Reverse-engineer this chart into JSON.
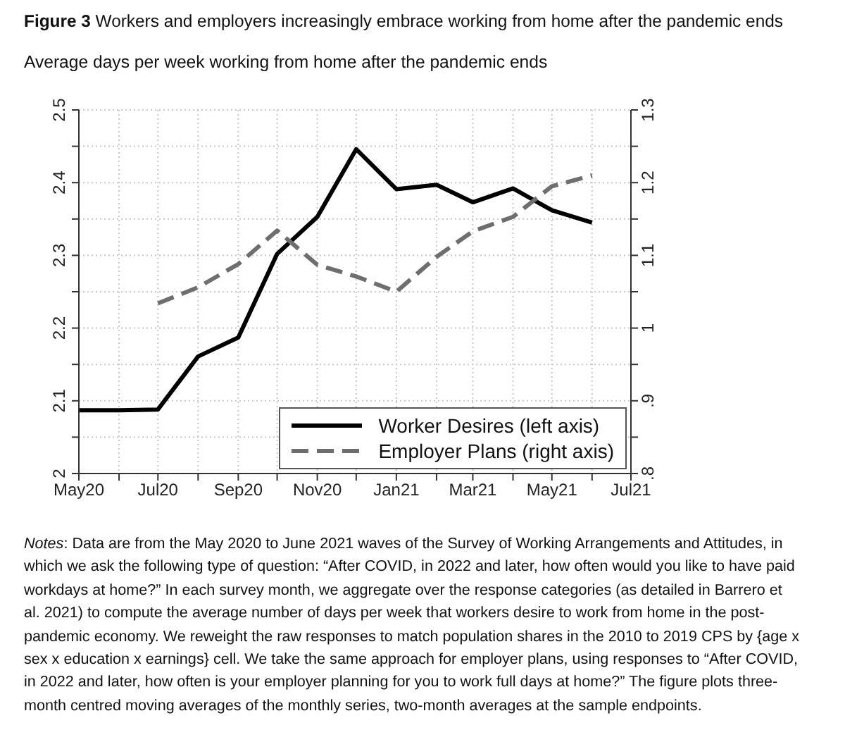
{
  "chart_data": {
    "type": "line",
    "title": "Figure 3 Workers and employers increasingly embrace working from home after the pandemic ends",
    "subtitle": "Average days per week working from home after the pandemic ends",
    "annotations": [
      "Notes: Data are from the May 2020 to June 2021 waves of the Survey of Working Arrangements and Attitudes, in which we ask the following type of question: “After COVID, in 2022 and later, how often would you like to have paid workdays at home?” In each survey month, we aggregate over the response categories (as detailed in Barrero et al. 2021) to compute the average number of days per week that workers desire to work from home in the post-pandemic economy. We reweight the raw responses to match population shares in the 2010 to 2019 CPS by {age x sex x education x earnings} cell. We take the same approach for employer plans, using responses to “After COVID, in 2022 and later, how often is your employer planning for you to work full days at home?” The figure plots three-month centred moving averages of the monthly series, two-month averages at the sample endpoints."
    ],
    "x": [
      "2020-05",
      "2020-06",
      "2020-07",
      "2020-08",
      "2020-09",
      "2020-10",
      "2020-11",
      "2020-12",
      "2021-01",
      "2021-02",
      "2021-03",
      "2021-04",
      "2021-05",
      "2021-06"
    ],
    "series": [
      {
        "name": "Worker Desires (left axis)",
        "color": "#000000",
        "line_style": "solid",
        "values": [
          2.087,
          2.087,
          2.088,
          2.161,
          2.187,
          2.302,
          2.353,
          2.446,
          2.391,
          2.397,
          2.373,
          2.392,
          2.362,
          2.345
        ]
      },
      {
        "name": "Employer Plans (right axis)",
        "color": "#6e6e6e",
        "line_style": "dashed",
        "axis": "y2",
        "values": [
          null,
          null,
          1.034,
          1.056,
          1.088,
          1.134,
          1.087,
          1.071,
          1.05,
          1.098,
          1.133,
          1.153,
          1.195,
          1.21
        ]
      }
    ],
    "xlim": [
      "2020-05",
      "2021-07"
    ],
    "xticks": [
      {
        "value": "2020-05",
        "label": "May20"
      },
      {
        "value": "2020-06",
        "label": null
      },
      {
        "value": "2020-07",
        "label": "Jul20"
      },
      {
        "value": "2020-08",
        "label": null
      },
      {
        "value": "2020-09",
        "label": "Sep20"
      },
      {
        "value": "2020-10",
        "label": null
      },
      {
        "value": "2020-11",
        "label": "Nov20"
      },
      {
        "value": "2020-12",
        "label": null
      },
      {
        "value": "2021-01",
        "label": "Jan21"
      },
      {
        "value": "2021-02",
        "label": null
      },
      {
        "value": "2021-03",
        "label": "Mar21"
      },
      {
        "value": "2021-04",
        "label": null
      },
      {
        "value": "2021-05",
        "label": "May21"
      },
      {
        "value": "2021-06",
        "label": null
      },
      {
        "value": "2021-07",
        "label": "Jul21"
      }
    ],
    "ylim": [
      2,
      2.5
    ],
    "yticks": [
      2,
      {
        "value": 2.05,
        "label": null
      },
      2.1,
      {
        "value": 2.15,
        "label": null
      },
      2.2,
      {
        "value": 2.25,
        "label": null
      },
      2.3,
      {
        "value": 2.35,
        "label": null
      },
      2.4,
      {
        "value": 2.45,
        "label": null
      },
      2.5
    ],
    "y2lim": [
      0.8,
      1.3
    ],
    "y2ticks": [
      {
        "value": 0.8,
        "label": ".8"
      },
      {
        "value": 0.85,
        "label": null
      },
      {
        "value": 0.9,
        "label": ".9"
      },
      {
        "value": 0.95,
        "label": null
      },
      1,
      {
        "value": 1.05,
        "label": null
      },
      1.1,
      {
        "value": 1.15,
        "label": null
      },
      1.2,
      {
        "value": 1.25,
        "label": null
      },
      1.3
    ],
    "grid": true,
    "legend": "bottom right"
  }
}
